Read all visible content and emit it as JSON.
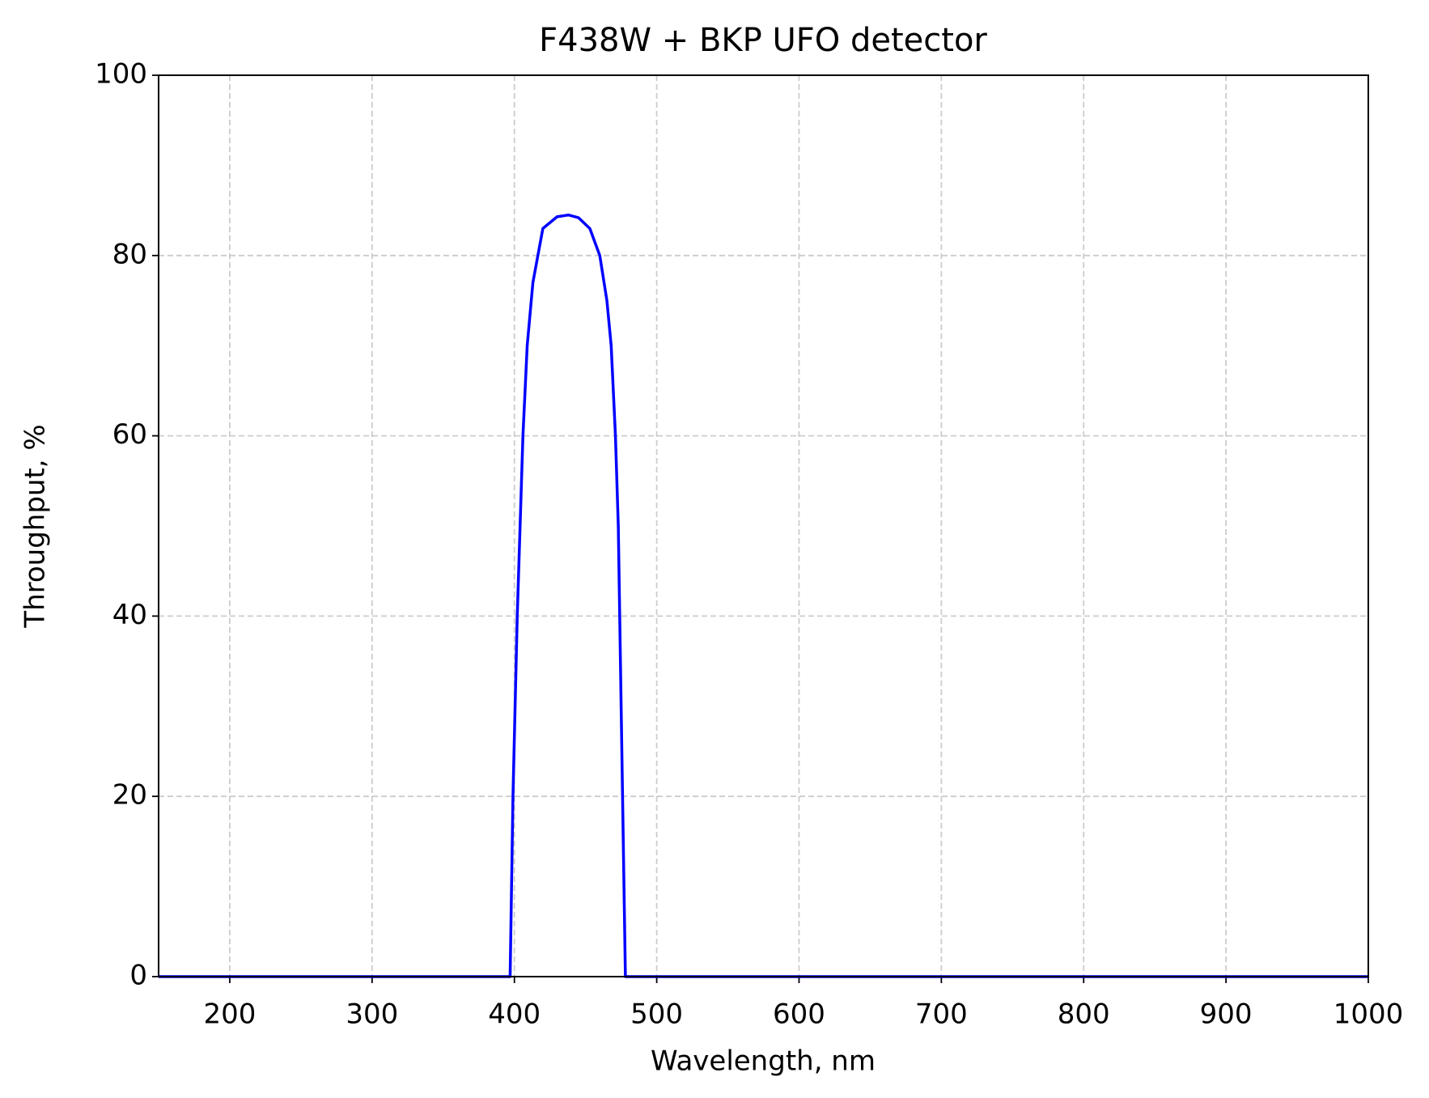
{
  "chart_data": {
    "type": "line",
    "title": "F438W + BKP UFO detector",
    "x_label": "Wavelength, nm",
    "y_label": "Throughput, %",
    "x": [
      150,
      397,
      399,
      402,
      406,
      409,
      413,
      420,
      430,
      438,
      445,
      453,
      460,
      465,
      468,
      471,
      473,
      474,
      476,
      478,
      1000
    ],
    "series": [
      {
        "name": "F438W + BKP UFO detector",
        "color": "#0000ff",
        "values": [
          0,
          0,
          20,
          40,
          60,
          70,
          77,
          83,
          84.3,
          84.5,
          84.2,
          83,
          80,
          75,
          70,
          60,
          50,
          40,
          20,
          0,
          0
        ]
      }
    ],
    "xlim": [
      150,
      1000
    ],
    "xticks": [
      200,
      300,
      400,
      500,
      600,
      700,
      800,
      900,
      1000
    ],
    "ylim": [
      0,
      100
    ],
    "yticks": [
      0,
      20,
      40,
      60,
      80,
      100
    ],
    "grid": true
  }
}
